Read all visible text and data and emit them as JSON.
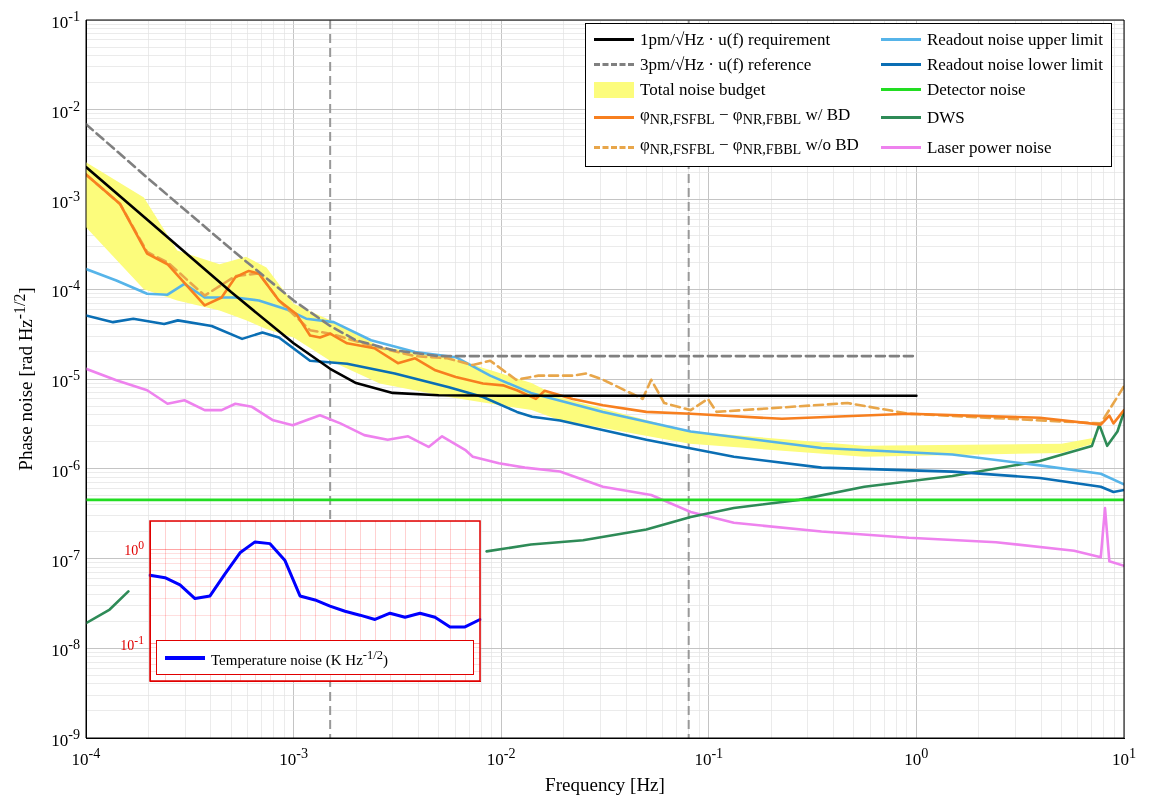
{
  "chart_data": [
    {
      "type": "line",
      "xlabel": "Frequency [Hz]",
      "ylabel": "Phase noise [rad Hz$^{-1/2}$]",
      "log": "xy",
      "grid": true,
      "legend": "top right",
      "xlim": [
        0.0001,
        10
      ],
      "ylim": [
        1e-09,
        0.1
      ],
      "xticks": [
        {
          "value": 0.0001,
          "label": "10$^{-4}$"
        },
        {
          "value": 0.0002,
          "label": null
        },
        {
          "value": 0.0003,
          "label": null
        },
        {
          "value": 0.0004,
          "label": null
        },
        {
          "value": 0.0005,
          "label": null
        },
        {
          "value": 0.0006,
          "label": null
        },
        {
          "value": 0.0007,
          "label": null
        },
        {
          "value": 0.0008,
          "label": null
        },
        {
          "value": 0.0009,
          "label": null
        },
        {
          "value": 0.001,
          "label": "10$^{-3}$"
        },
        {
          "value": 0.002,
          "label": null
        },
        {
          "value": 0.003,
          "label": null
        },
        {
          "value": 0.004,
          "label": null
        },
        {
          "value": 0.005,
          "label": null
        },
        {
          "value": 0.006,
          "label": null
        },
        {
          "value": 0.007,
          "label": null
        },
        {
          "value": 0.008,
          "label": null
        },
        {
          "value": 0.009,
          "label": null
        },
        {
          "value": 0.01,
          "label": "10$^{-2}$"
        },
        {
          "value": 0.02,
          "label": null
        },
        {
          "value": 0.03,
          "label": null
        },
        {
          "value": 0.04,
          "label": null
        },
        {
          "value": 0.05,
          "label": null
        },
        {
          "value": 0.06,
          "label": null
        },
        {
          "value": 0.07,
          "label": null
        },
        {
          "value": 0.08,
          "label": null
        },
        {
          "value": 0.09,
          "label": null
        },
        {
          "value": 0.1,
          "label": "10$^{-1}$"
        },
        {
          "value": 0.2,
          "label": null
        },
        {
          "value": 0.3,
          "label": null
        },
        {
          "value": 0.4,
          "label": null
        },
        {
          "value": 0.5,
          "label": null
        },
        {
          "value": 0.6,
          "label": null
        },
        {
          "value": 0.7,
          "label": null
        },
        {
          "value": 0.8,
          "label": null
        },
        {
          "value": 0.9,
          "label": null
        },
        {
          "value": 1,
          "label": "10$^{0}$"
        },
        {
          "value": 2,
          "label": null
        },
        {
          "value": 3,
          "label": null
        },
        {
          "value": 4,
          "label": null
        },
        {
          "value": 5,
          "label": null
        },
        {
          "value": 6,
          "label": null
        },
        {
          "value": 7,
          "label": null
        },
        {
          "value": 8,
          "label": null
        },
        {
          "value": 9,
          "label": null
        },
        {
          "value": 10,
          "label": "10$^{1}$"
        }
      ],
      "yticks": [
        {
          "value": 1e-09,
          "label": "10$^{-9}$"
        },
        {
          "value": 2e-09,
          "label": null
        },
        {
          "value": 3e-09,
          "label": null
        },
        {
          "value": 4e-09,
          "label": null
        },
        {
          "value": 5e-09,
          "label": null
        },
        {
          "value": 6e-09,
          "label": null
        },
        {
          "value": 7e-09,
          "label": null
        },
        {
          "value": 8e-09,
          "label": null
        },
        {
          "value": 9e-09,
          "label": null
        },
        {
          "value": 1e-08,
          "label": "10$^{-8}$"
        },
        {
          "value": 2e-08,
          "label": null
        },
        {
          "value": 3e-08,
          "label": null
        },
        {
          "value": 4e-08,
          "label": null
        },
        {
          "value": 5e-08,
          "label": null
        },
        {
          "value": 6e-08,
          "label": null
        },
        {
          "value": 7e-08,
          "label": null
        },
        {
          "value": 8e-08,
          "label": null
        },
        {
          "value": 9e-08,
          "label": null
        },
        {
          "value": 1e-07,
          "label": "10$^{-7}$"
        },
        {
          "value": 2e-07,
          "label": null
        },
        {
          "value": 3e-07,
          "label": null
        },
        {
          "value": 4e-07,
          "label": null
        },
        {
          "value": 5e-07,
          "label": null
        },
        {
          "value": 6e-07,
          "label": null
        },
        {
          "value": 7e-07,
          "label": null
        },
        {
          "value": 8e-07,
          "label": null
        },
        {
          "value": 9e-07,
          "label": null
        },
        {
          "value": 1e-06,
          "label": "10$^{-6}$"
        },
        {
          "value": 2e-06,
          "label": null
        },
        {
          "value": 3e-06,
          "label": null
        },
        {
          "value": 4e-06,
          "label": null
        },
        {
          "value": 5e-06,
          "label": null
        },
        {
          "value": 6e-06,
          "label": null
        },
        {
          "value": 7e-06,
          "label": null
        },
        {
          "value": 8e-06,
          "label": null
        },
        {
          "value": 9e-06,
          "label": null
        },
        {
          "value": 1e-05,
          "label": "10$^{-5}$"
        },
        {
          "value": 2e-05,
          "label": null
        },
        {
          "value": 3e-05,
          "label": null
        },
        {
          "value": 4e-05,
          "label": null
        },
        {
          "value": 5e-05,
          "label": null
        },
        {
          "value": 6e-05,
          "label": null
        },
        {
          "value": 7e-05,
          "label": null
        },
        {
          "value": 8e-05,
          "label": null
        },
        {
          "value": 9e-05,
          "label": null
        },
        {
          "value": 0.0001,
          "label": "10$^{-4}$"
        },
        {
          "value": 0.0002,
          "label": null
        },
        {
          "value": 0.0003,
          "label": null
        },
        {
          "value": 0.0004,
          "label": null
        },
        {
          "value": 0.0005,
          "label": null
        },
        {
          "value": 0.0006,
          "label": null
        },
        {
          "value": 0.0007,
          "label": null
        },
        {
          "value": 0.0008,
          "label": null
        },
        {
          "value": 0.0009,
          "label": null
        },
        {
          "value": 0.001,
          "label": "10$^{-3}$"
        },
        {
          "value": 0.002,
          "label": null
        },
        {
          "value": 0.003,
          "label": null
        },
        {
          "value": 0.004,
          "label": null
        },
        {
          "value": 0.005,
          "label": null
        },
        {
          "value": 0.006,
          "label": null
        },
        {
          "value": 0.007,
          "label": null
        },
        {
          "value": 0.008,
          "label": null
        },
        {
          "value": 0.009,
          "label": null
        },
        {
          "value": 0.01,
          "label": "10$^{-2}$"
        },
        {
          "value": 0.02,
          "label": null
        },
        {
          "value": 0.03,
          "label": null
        },
        {
          "value": 0.04,
          "label": null
        },
        {
          "value": 0.05,
          "label": null
        },
        {
          "value": 0.06,
          "label": null
        },
        {
          "value": 0.07,
          "label": null
        },
        {
          "value": 0.08,
          "label": null
        },
        {
          "value": 0.09,
          "label": null
        },
        {
          "value": 0.1,
          "label": "10$^{-1}$"
        }
      ],
      "ref_lines": [
        {
          "axis": "x",
          "value": 0.0015,
          "color": "#999999",
          "line_style": "dashed"
        },
        {
          "axis": "x",
          "value": 0.08,
          "color": "#999999",
          "line_style": "dashed"
        }
      ],
      "series": [
        {
          "name": "1pm/√Hz · u(f) requirement",
          "color": "#000000",
          "x": [
            0.0001,
            0.0002,
            0.0005,
            0.001,
            0.0015,
            0.002,
            0.003,
            0.005,
            0.01,
            1
          ],
          "values": [
            0.0023,
            0.00058,
            9.3e-05,
            2.5e-05,
            1.3e-05,
            9e-06,
            7e-06,
            6.6e-06,
            6.5e-06,
            6.5e-06
          ]
        },
        {
          "name": "3pm/√Hz · u(f) reference",
          "color": "#808080",
          "line_style": "dashed",
          "x": [
            0.0001,
            0.0002,
            0.0005,
            0.001,
            0.0015,
            0.002,
            0.003,
            0.005,
            0.01,
            1
          ],
          "values": [
            0.0069,
            0.0017,
            0.00028,
            7.5e-05,
            3.9e-05,
            2.7e-05,
            2.1e-05,
            1.8e-05,
            1.8e-05,
            1.8e-05
          ]
        },
        {
          "name": "Total noise budget",
          "type": "area",
          "color": "#fcfc7c",
          "x": [
            0.0001,
            0.00019,
            0.000275,
            0.00044,
            0.00059,
            0.00074,
            0.001,
            0.0015,
            0.0026,
            0.0056,
            0.014,
            0.019,
            0.081,
            0.56,
            5.0,
            7.1
          ],
          "values": [
            null,
            null,
            null,
            null,
            null,
            null,
            null,
            null,
            null,
            null,
            null,
            null,
            null,
            null,
            null,
            null
          ],
          "upper": [
            0.0026,
            0.00105,
            0.00027,
            0.00019,
            0.00023,
            0.000175,
            6.9e-05,
            4.5e-05,
            2.3e-05,
            1.75e-05,
            9e-06,
            6.3e-06,
            2.6e-06,
            1.8e-06,
            1.9e-06,
            2.2e-06
          ],
          "lower": [
            0.00049,
            0.0001,
            7.5e-05,
            5.8e-05,
            4.5e-05,
            3.6e-05,
            2.9e-05,
            1.6e-05,
            8.9e-06,
            6.3e-06,
            4.5e-06,
            3.5e-06,
            1.9e-06,
            1.36e-06,
            1.5e-06,
            1.9e-06
          ]
        },
        {
          "name": "φ$_{NR,FSFBL}$ − φ$_{NR,FBBL}$ w/ BD",
          "color": "#f77f1f",
          "x": [
            0.0001,
            0.000146,
            0.000197,
            0.000247,
            0.000373,
            0.00045,
            0.000524,
            0.000608,
            0.00068,
            0.00085,
            0.00103,
            0.0012,
            0.00134,
            0.0015,
            0.00181,
            0.00245,
            0.00318,
            0.00385,
            0.00482,
            0.00604,
            0.00817,
            0.0102,
            0.0119,
            0.0147,
            0.0162,
            0.0221,
            0.0309,
            0.05,
            0.0818,
            0.225,
            0.92,
            3.93,
            7.73,
            8.5,
            8.9,
            10
          ],
          "values": [
            0.0019,
            0.00089,
            0.00025,
            0.00019,
            6.6e-05,
            8.1e-05,
            0.000136,
            0.00016,
            0.00015,
            7.5e-05,
            5.3e-05,
            3.05e-05,
            2.9e-05,
            3.2e-05,
            2.5e-05,
            2.2e-05,
            1.5e-05,
            1.7e-05,
            1.25e-05,
            1.05e-05,
            8.9e-06,
            8.5e-06,
            7.5e-06,
            6e-06,
            7.4e-06,
            6e-06,
            5.1e-06,
            4.3e-06,
            4.1e-06,
            3.6e-06,
            4.1e-06,
            3.7e-06,
            3.1e-06,
            3.9e-06,
            3.2e-06,
            4.5e-06
          ]
        },
        {
          "name": "φ$_{NR,FSFBL}$ − φ$_{NR,FBBL}$ w/o BD",
          "color": "#e8a64a",
          "line_style": "dashed",
          "x": [
            0.0001,
            0.000146,
            0.000197,
            0.000247,
            0.000373,
            0.000524,
            0.00068,
            0.00085,
            0.0012,
            0.0015,
            0.00245,
            0.00385,
            0.0055,
            0.0073,
            0.00885,
            0.0118,
            0.0151,
            0.0221,
            0.0256,
            0.031,
            0.048,
            0.0528,
            0.061,
            0.0818,
            0.099,
            0.109,
            0.466,
            0.92,
            7.73,
            10
          ],
          "values": [
            0.0019,
            0.00089,
            0.00026,
            0.0002,
            8.5e-05,
            0.00014,
            0.00015,
            7.5e-05,
            3.5e-05,
            3.2e-05,
            2.3e-05,
            1.8e-05,
            1.7e-05,
            1.43e-05,
            1.6e-05,
            9.8e-06,
            1.09e-05,
            1.09e-05,
            1.15e-05,
            9.8e-06,
            6e-06,
            9.8e-06,
            5.4e-06,
            4.5e-06,
            6e-06,
            4.3e-06,
            5.4e-06,
            4.1e-06,
            3.2e-06,
            8.3e-06
          ]
        },
        {
          "name": "Readout noise upper limit",
          "color": "#56b4e9",
          "x": [
            0.0001,
            0.00014,
            0.000197,
            0.000247,
            0.000298,
            0.000373,
            0.000524,
            0.00068,
            0.00092,
            0.00115,
            0.00156,
            0.00236,
            0.00385,
            0.00604,
            0.00885,
            0.0139,
            0.0309,
            0.0818,
            0.349,
            1.49,
            3.93,
            7.73,
            10
          ],
          "values": [
            0.000168,
            0.000125,
            8.9e-05,
            8.7e-05,
            0.000115,
            8.1e-05,
            8.1e-05,
            7.5e-05,
            6e-05,
            4.7e-05,
            4.3e-05,
            2.7e-05,
            2e-05,
            1.75e-05,
            1.09e-05,
            7e-06,
            4.3e-06,
            2.6e-06,
            1.7e-06,
            1.44e-06,
            1.09e-06,
            8.8e-07,
            6.7e-07
          ]
        },
        {
          "name": "Readout noise lower limit",
          "color": "#0a6eb4",
          "x": [
            0.0001,
            0.000135,
            0.000169,
            0.000238,
            0.000277,
            0.000403,
            0.000565,
            0.000708,
            0.00085,
            0.0012,
            0.00181,
            0.00307,
            0.0056,
            0.00817,
            0.0119,
            0.0141,
            0.0192,
            0.05,
            0.132,
            0.349,
            1.49,
            3.93,
            7.73,
            8.9,
            10
          ],
          "values": [
            5.1e-05,
            4.3e-05,
            4.7e-05,
            4.1e-05,
            4.5e-05,
            3.9e-05,
            2.8e-05,
            3.3e-05,
            2.9e-05,
            1.6e-05,
            1.48e-05,
            1.15e-05,
            8.1e-06,
            6.3e-06,
            4.3e-06,
            3.8e-06,
            3.45e-06,
            2.1e-06,
            1.36e-06,
            1.03e-06,
            9.3e-07,
            7.9e-07,
            6.3e-07,
            5.5e-07,
            5.8e-07
          ]
        },
        {
          "name": "Detector noise",
          "color": "#22dd22",
          "x": [
            0.0001,
            10
          ],
          "values": [
            4.5e-07,
            4.5e-07
          ]
        },
        {
          "name": "DWS",
          "color": "#2e8b57",
          "x": [
            0.0001,
            0.00013,
            0.00016,
            0.001,
            0.0085,
            0.0139,
            0.0248,
            0.05,
            0.0818,
            0.132,
            0.272,
            0.562,
            1.49,
            3.93,
            7.0,
            7.6,
            8.3,
            9.3,
            10
          ],
          "values": [
            1.9e-08,
            2.7e-08,
            4.3e-08,
            null,
            1.2e-07,
            1.43e-07,
            1.6e-07,
            2.1e-07,
            2.9e-07,
            3.65e-07,
            4.5e-07,
            6.3e-07,
            8.3e-07,
            1.22e-06,
            1.79e-06,
            3.1e-06,
            1.8e-06,
            2.6e-06,
            4.3e-06
          ]
        },
        {
          "name": "Laser power noise",
          "color": "#ee82ee",
          "x": [
            0.0001,
            0.00014,
            0.000197,
            0.000247,
            0.000298,
            0.000373,
            0.00045,
            0.000524,
            0.00063,
            0.00079,
            0.00099,
            0.00134,
            0.00168,
            0.00219,
            0.00284,
            0.00356,
            0.00447,
            0.00519,
            0.00676,
            0.0073,
            0.00975,
            0.013,
            0.0192,
            0.0309,
            0.0528,
            0.0818,
            0.132,
            0.349,
            0.92,
            2.42,
            5.75,
            7.73,
            8.1,
            8.5,
            10
          ],
          "values": [
            1.3e-05,
            9.7e-06,
            7.5e-06,
            5.3e-06,
            5.8e-06,
            4.5e-06,
            4.5e-06,
            5.3e-06,
            4.9e-06,
            3.5e-06,
            3.05e-06,
            3.95e-06,
            3.2e-06,
            2.37e-06,
            2.1e-06,
            2.3e-06,
            1.75e-06,
            2.3e-06,
            1.6e-06,
            1.36e-06,
            1.15e-06,
            1.03e-06,
            9.3e-07,
            6.3e-07,
            5.1e-07,
            3.3e-07,
            2.5e-07,
            2e-07,
            1.7e-07,
            1.52e-07,
            1.22e-07,
            1.03e-07,
            3.65e-07,
            9.3e-08,
            8.3e-08
          ]
        }
      ]
    },
    {
      "type": "line",
      "log": "y",
      "grid": true,
      "legend": "bottom",
      "tick_labels": "y",
      "categories": [
        null,
        null,
        null,
        null,
        null,
        null,
        null,
        null,
        null,
        null,
        null,
        null,
        null,
        null,
        null,
        null,
        null,
        null,
        null,
        null,
        null,
        null,
        null
      ],
      "ylim": [
        0.04,
        2
      ],
      "yticks": [
        {
          "value": 0.04,
          "label": null
        },
        {
          "value": 0.05,
          "label": null
        },
        {
          "value": 0.06,
          "label": null
        },
        {
          "value": 0.07,
          "label": null
        },
        {
          "value": 0.08,
          "label": null
        },
        {
          "value": 0.09,
          "label": null
        },
        {
          "value": 0.1,
          "label": "10$^{-1}$"
        },
        {
          "value": 0.2,
          "label": null
        },
        {
          "value": 0.3,
          "label": null
        },
        {
          "value": 0.4,
          "label": null
        },
        {
          "value": 0.5,
          "label": null
        },
        {
          "value": 0.6,
          "label": null
        },
        {
          "value": 0.7,
          "label": null
        },
        {
          "value": 0.8,
          "label": null
        },
        {
          "value": 0.9,
          "label": null
        },
        {
          "value": 1,
          "label": "10$^{0}$"
        },
        {
          "value": 2,
          "label": null
        }
      ],
      "series": [
        {
          "name": "Temperature noise (K Hz$^{-1/2}$)",
          "color": "#0000ff",
          "values": [
            0.53,
            0.5,
            0.42,
            0.3,
            0.32,
            0.55,
            0.92,
            1.2,
            1.15,
            0.76,
            0.32,
            0.29,
            0.25,
            0.22,
            0.2,
            0.18,
            0.21,
            0.19,
            0.21,
            0.19,
            0.15,
            0.15,
            0.18
          ]
        }
      ]
    }
  ]
}
